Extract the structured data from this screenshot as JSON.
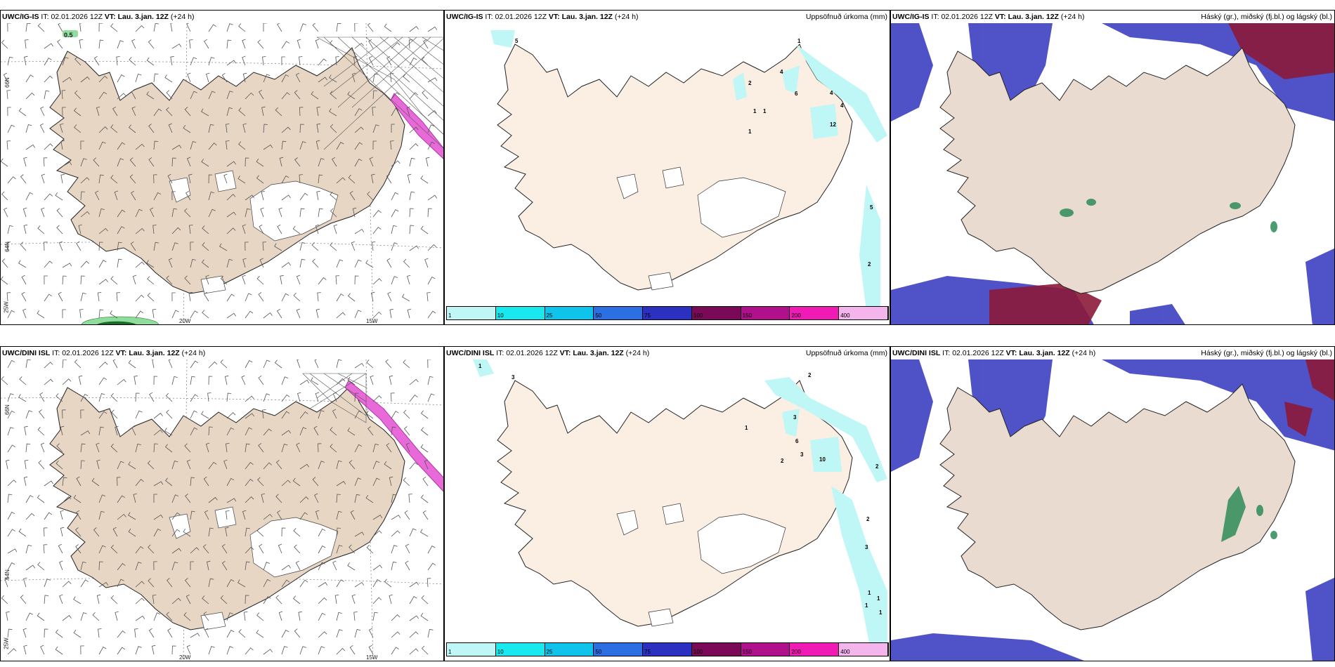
{
  "colors": {
    "land_wind": "#e8d6c4",
    "land_precip": "#fbeee2",
    "land_cloud": "#eadbd0",
    "high_cloud": "#2e8b57",
    "mid_cloud": "#3d3fc2",
    "low_cloud": "#8b1a3a"
  },
  "rows": [
    {
      "model": "UWC/IG-IS",
      "it_label": "IT:",
      "it_value": "02.01.2026 12Z",
      "vt_label": "VT:",
      "vt_value": "Lau. 3.jan. 12Z",
      "lead": "(+24 h)",
      "wind_axis": {
        "lat66": "66N",
        "lat64": "64N",
        "lon25": "25W",
        "lon20": "20W",
        "lon15": "15W",
        "max_label": "0.5"
      },
      "precip_title": "Uppsöfnuð úrkoma (mm)",
      "precip_labels": [
        "5",
        "2",
        "1",
        "1",
        "1",
        "4",
        "6",
        "1",
        "4",
        "4",
        "12",
        "5",
        "2"
      ],
      "cloud_title": "Háský (gr.), miðský (fj.bl.) og lágský (bl.)"
    },
    {
      "model": "UWC/DINI ISL",
      "it_label": "IT:",
      "it_value": "02.01.2026 12Z",
      "vt_label": "VT:",
      "vt_value": "Lau. 3.jan. 12Z",
      "lead": "(+24 h)",
      "wind_axis": {
        "lat66": "66N",
        "lat64": "64N",
        "lon25": "25W",
        "lon20": "20W",
        "lon15": "15W"
      },
      "precip_title": "Uppsöfnuð úrkoma (mm)",
      "precip_labels": [
        "1",
        "3",
        "1",
        "2",
        "3",
        "3",
        "6",
        "2",
        "10",
        "2",
        "2",
        "3",
        "1",
        "1",
        "1",
        "1"
      ],
      "cloud_title": "Háský (gr.), miðský (fj.bl.) og lágský (bl.)"
    }
  ],
  "colorbar": {
    "ticks": [
      "1",
      "10",
      "25",
      "50",
      "75",
      "100",
      "150",
      "200",
      "400"
    ],
    "colors": [
      "#bff7f7",
      "#19e9ef",
      "#0fc3ea",
      "#2b6fe3",
      "#2b30c1",
      "#7a0a58",
      "#b0108c",
      "#f01bb5",
      "#f3b5ec"
    ]
  }
}
